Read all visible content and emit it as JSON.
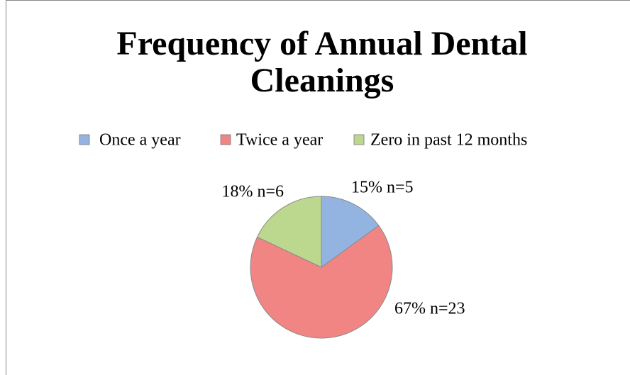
{
  "chart_data": {
    "type": "pie",
    "title": "Frequency of Annual Dental Cleanings",
    "categories": [
      "Once a year",
      "Twice a year",
      "Zero in past 12 months"
    ],
    "values": [
      15,
      67,
      18
    ],
    "value_labels": [
      "15% n=5",
      "67% n=23",
      "18% n=6"
    ],
    "colors": [
      "#93b3e0",
      "#f08584",
      "#bcd88f"
    ],
    "legend": "top"
  }
}
